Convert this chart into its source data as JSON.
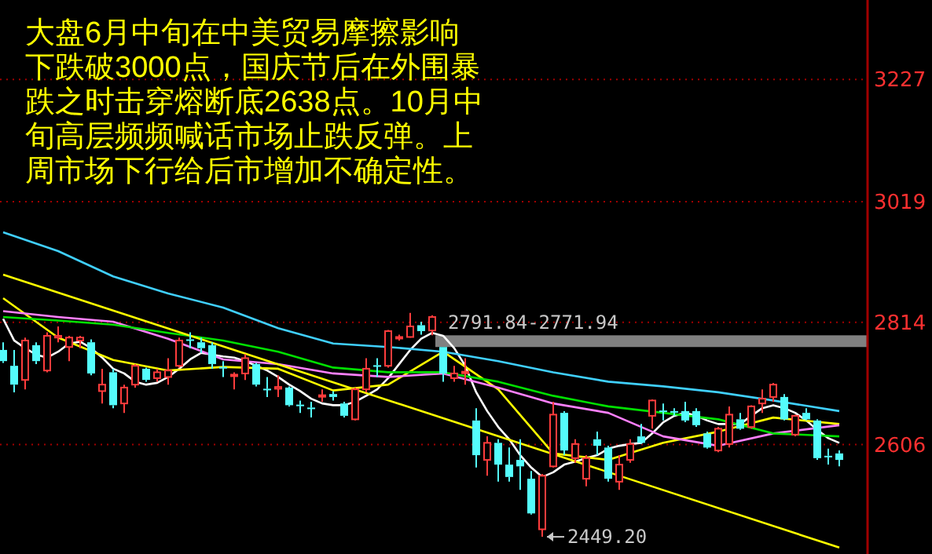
{
  "chart_data": {
    "type": "candlestick",
    "categories": [
      null,
      null,
      null,
      null,
      null,
      null,
      null,
      null,
      null,
      null,
      null,
      null,
      null,
      null,
      null,
      null,
      null,
      null,
      null,
      null,
      null,
      null,
      null,
      null,
      null,
      null,
      null,
      null,
      null,
      null,
      null,
      null,
      null,
      null,
      null,
      null,
      null,
      null,
      null,
      null,
      null,
      null,
      null,
      null,
      null,
      null,
      null,
      null,
      null,
      null,
      null,
      null,
      null,
      null,
      null,
      null,
      null,
      null,
      null,
      null,
      null,
      null,
      null,
      null,
      null,
      null,
      null,
      null,
      null,
      null,
      null,
      null,
      null,
      null,
      null,
      null,
      null
    ],
    "ohlc": [
      [
        2767,
        2780,
        2745,
        2748
      ],
      [
        2740,
        2767,
        2695,
        2708
      ],
      [
        2716,
        2788,
        2700,
        2783
      ],
      [
        2775,
        2780,
        2743,
        2748
      ],
      [
        2732,
        2797,
        2729,
        2791
      ],
      [
        2788,
        2807,
        2780,
        2791
      ],
      [
        2772,
        2791,
        2748,
        2788
      ],
      [
        2783,
        2791,
        2770,
        2788
      ],
      [
        2780,
        2785,
        2724,
        2727
      ],
      [
        2697,
        2735,
        2676,
        2708
      ],
      [
        2729,
        2735,
        2668,
        2673
      ],
      [
        2676,
        2708,
        2660,
        2703
      ],
      [
        2708,
        2743,
        2703,
        2740
      ],
      [
        2735,
        2737,
        2713,
        2716
      ],
      [
        2719,
        2735,
        2713,
        2729
      ],
      [
        2721,
        2753,
        2708,
        2732
      ],
      [
        2740,
        2788,
        2737,
        2783
      ],
      [
        2785,
        2797,
        2770,
        2783
      ],
      [
        2780,
        2788,
        2762,
        2770
      ],
      [
        2775,
        2780,
        2735,
        2743
      ],
      [
        2738,
        2748,
        2721,
        2736
      ],
      [
        2723,
        2729,
        2700,
        2725
      ],
      [
        2727,
        2760,
        2716,
        2753
      ],
      [
        2743,
        2745,
        2705,
        2708
      ],
      [
        2701,
        2721,
        2687,
        2699
      ],
      [
        2701,
        2724,
        2687,
        2704
      ],
      [
        2703,
        2705,
        2671,
        2673
      ],
      [
        2674,
        2681,
        2660,
        2672
      ],
      [
        2669,
        2679,
        2652,
        2667
      ],
      [
        2688,
        2700,
        2679,
        2690
      ],
      [
        2692,
        2697,
        2681,
        2687
      ],
      [
        2676,
        2679,
        2652,
        2655
      ],
      [
        2649,
        2703,
        2647,
        2700
      ],
      [
        2700,
        2753,
        2695,
        2735
      ],
      [
        2741,
        2753,
        2721,
        2740
      ],
      [
        2740,
        2801,
        2737,
        2799
      ],
      [
        2787,
        2793,
        2783,
        2789
      ],
      [
        2789,
        2830,
        2788,
        2807
      ],
      [
        2809,
        2815,
        2793,
        2799
      ],
      [
        2800,
        2826,
        2791.84,
        2823
      ],
      [
        2771.94,
        2771.94,
        2713,
        2727
      ],
      [
        2719,
        2740,
        2713,
        2727
      ],
      [
        2728,
        2753,
        2708,
        2730
      ],
      [
        2647,
        2668,
        2567,
        2588
      ],
      [
        2580,
        2620,
        2553,
        2609
      ],
      [
        2609,
        2615,
        2543,
        2572
      ],
      [
        2572,
        2601,
        2543,
        2551
      ],
      [
        2580,
        2615,
        2529,
        2569
      ],
      [
        2548,
        2561,
        2487,
        2489
      ],
      [
        2462,
        2556,
        2449.2,
        2553
      ],
      [
        2569,
        2679,
        2567,
        2657
      ],
      [
        2660,
        2663,
        2588,
        2596
      ],
      [
        2583,
        2615,
        2575,
        2607
      ],
      [
        2548,
        2588,
        2535,
        2583
      ],
      [
        2615,
        2628,
        2588,
        2604
      ],
      [
        2601,
        2604,
        2543,
        2548
      ],
      [
        2543,
        2588,
        2529,
        2572
      ],
      [
        2580,
        2615,
        2575,
        2607
      ],
      [
        2620,
        2641,
        2607,
        2609
      ],
      [
        2655,
        2683,
        2633,
        2681
      ],
      [
        2664,
        2676,
        2647,
        2662
      ],
      [
        2663,
        2668,
        2655,
        2662
      ],
      [
        2663,
        2679,
        2644,
        2647
      ],
      [
        2663,
        2668,
        2636,
        2639
      ],
      [
        2625,
        2628,
        2599,
        2601
      ],
      [
        2596,
        2636,
        2593,
        2633
      ],
      [
        2607,
        2671,
        2601,
        2657
      ],
      [
        2649,
        2660,
        2631,
        2633
      ],
      [
        2636,
        2673,
        2633,
        2671
      ],
      [
        2676,
        2700,
        2660,
        2684
      ],
      [
        2687,
        2711,
        2679,
        2708
      ],
      [
        2687,
        2692,
        2647,
        2649
      ],
      [
        2623,
        2657,
        2620,
        2655
      ],
      [
        2660,
        2668,
        2647,
        2649
      ],
      [
        2647,
        2649,
        2580,
        2583
      ],
      [
        2587,
        2599,
        2572,
        2585
      ],
      [
        2591,
        2596,
        2569,
        2580
      ]
    ],
    "series": [
      {
        "type": "line",
        "color": "#ffffff",
        "values": [
          2820,
          2783,
          2770,
          2759,
          2754,
          2764,
          2778,
          2781,
          2770,
          2754,
          2735,
          2727,
          2713,
          2708,
          2711,
          2721,
          2735,
          2751,
          2762,
          2759,
          2756,
          2754,
          2748,
          2740,
          2732,
          2721,
          2708,
          2697,
          2684,
          2676,
          2673,
          2673,
          2679,
          2689,
          2700,
          2719,
          2743,
          2767,
          2786,
          2796,
          2791,
          2770,
          2740,
          2695,
          2663,
          2636,
          2615,
          2588,
          2567,
          2551,
          2559,
          2572,
          2577,
          2583,
          2588,
          2599,
          2604,
          2607,
          2609,
          2625,
          2644,
          2655,
          2660,
          2655,
          2647,
          2641,
          2641,
          2641,
          2655,
          2668,
          2673,
          2668,
          2660,
          2647,
          2631,
          2617,
          2609
        ]
      },
      {
        "type": "line",
        "color": "#ffff00",
        "values": [
          2855,
          null,
          null,
          null,
          null,
          2788,
          null,
          null,
          null,
          null,
          2750,
          null,
          null,
          null,
          null,
          2732,
          null,
          null,
          null,
          null,
          2738,
          null,
          null,
          null,
          null,
          2735,
          null,
          null,
          null,
          null,
          2698,
          null,
          null,
          null,
          null,
          2708,
          null,
          null,
          null,
          null,
          2764,
          null,
          null,
          null,
          null,
          2700,
          null,
          null,
          null,
          null,
          2591,
          null,
          null,
          null,
          null,
          2580,
          null,
          null,
          null,
          null,
          2609,
          null,
          null,
          null,
          null,
          2628,
          null,
          null,
          null,
          null,
          2652,
          null,
          null,
          null,
          null,
          null,
          2641
        ]
      },
      {
        "type": "line",
        "color": "#ff80ff",
        "values": [
          2833,
          null,
          null,
          null,
          null,
          2823,
          null,
          null,
          null,
          null,
          2815,
          null,
          null,
          null,
          null,
          2786,
          null,
          null,
          null,
          null,
          2751,
          null,
          null,
          null,
          null,
          2743,
          null,
          null,
          null,
          null,
          2727,
          null,
          null,
          null,
          null,
          2721,
          null,
          null,
          null,
          null,
          2727,
          null,
          null,
          null,
          null,
          2703,
          null,
          null,
          null,
          null,
          2676,
          null,
          null,
          null,
          null,
          2660,
          null,
          null,
          null,
          null,
          2620,
          null,
          null,
          null,
          null,
          2604,
          null,
          null,
          null,
          null,
          2625,
          null,
          null,
          null,
          null,
          null,
          2639
        ]
      },
      {
        "type": "line",
        "color": "#00e000",
        "values": [
          2823,
          null,
          null,
          null,
          null,
          2817,
          null,
          null,
          null,
          null,
          2810,
          null,
          null,
          null,
          null,
          2796,
          null,
          null,
          null,
          null,
          2783,
          null,
          null,
          null,
          null,
          2764,
          null,
          null,
          null,
          null,
          2737,
          null,
          null,
          null,
          null,
          2729,
          null,
          null,
          null,
          null,
          2729,
          null,
          null,
          null,
          null,
          2713,
          null,
          null,
          null,
          null,
          2689,
          null,
          null,
          null,
          null,
          2671,
          null,
          null,
          null,
          null,
          2660,
          null,
          null,
          null,
          null,
          2649,
          null,
          null,
          null,
          null,
          2625,
          null,
          null,
          null,
          null,
          null,
          2620
        ]
      },
      {
        "type": "line",
        "color": "#40d0ff",
        "values": [
          2967,
          null,
          null,
          null,
          null,
          2935,
          null,
          null,
          null,
          null,
          2892,
          null,
          null,
          null,
          null,
          2863,
          null,
          null,
          null,
          null,
          2839,
          null,
          null,
          null,
          null,
          2804,
          null,
          null,
          null,
          null,
          2778,
          null,
          null,
          null,
          null,
          2772,
          null,
          null,
          null,
          null,
          2764,
          null,
          null,
          null,
          null,
          2748,
          null,
          null,
          null,
          null,
          2729,
          null,
          null,
          null,
          null,
          2713,
          null,
          null,
          null,
          null,
          2705,
          null,
          null,
          null,
          null,
          2695,
          null,
          null,
          null,
          null,
          2681,
          null,
          null,
          null,
          null,
          null,
          2663
        ]
      },
      {
        "type": "line",
        "color": "#ffff00",
        "values": [
          2895,
          null,
          null,
          null,
          null,
          null,
          null,
          null,
          null,
          null,
          null,
          null,
          null,
          null,
          null,
          null,
          null,
          null,
          null,
          null,
          null,
          null,
          null,
          null,
          null,
          null,
          null,
          null,
          null,
          null,
          null,
          null,
          null,
          null,
          null,
          null,
          null,
          null,
          null,
          null,
          null,
          null,
          null,
          null,
          null,
          null,
          null,
          null,
          null,
          null,
          null,
          null,
          null,
          null,
          null,
          null,
          null,
          null,
          null,
          null,
          null,
          null,
          null,
          null,
          null,
          null,
          null,
          null,
          null,
          null,
          null,
          null,
          null,
          null,
          null,
          null,
          2431
        ]
      }
    ],
    "ylim": [
      2420,
      3362
    ],
    "yticks": [
      2606,
      2814,
      3019,
      3227
    ],
    "grid": "y",
    "tick_labels": "y",
    "bands": [
      {
        "axis": "y",
        "from": 2771.94,
        "to": 2791.84,
        "label": "2791.84-2771.94",
        "color": "#808080"
      }
    ],
    "annotations": [
      "大盘6月中旬在中美贸易摩擦影响下跌破3000点，国庆节后在外围暴跌之时击穿熔断底2638点。10月中旬高层频频喊话市场止跌反弹。上周市场下行给后市增加不确定性。",
      "2449.20"
    ]
  }
}
